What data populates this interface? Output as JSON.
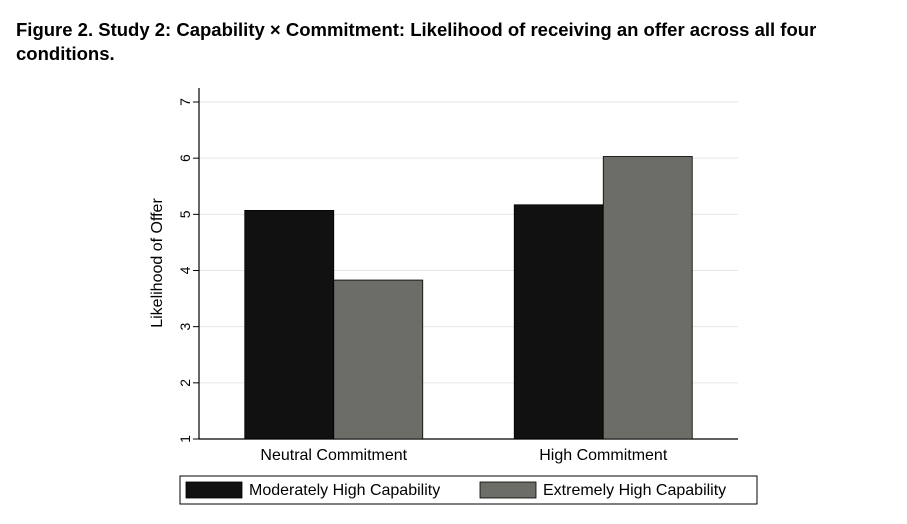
{
  "figure": {
    "title": "Figure 2.  Study 2: Capability × Commitment: Likelihood of receiving an offer across all four conditions."
  },
  "chart_data": {
    "type": "bar",
    "categories": [
      "Neutral Commitment",
      "High Commitment"
    ],
    "series": [
      {
        "name": "Moderately High Capability",
        "values": [
          5.07,
          5.17
        ],
        "color": "#111111"
      },
      {
        "name": "Extremely High Capability",
        "values": [
          3.83,
          6.03
        ],
        "color": "#6d6d68"
      }
    ],
    "ylabel": "Likelihood of Offer",
    "xlabel": "",
    "ylim": [
      1,
      7
    ],
    "yticks": [
      1,
      2,
      3,
      4,
      5,
      6,
      7
    ],
    "grid": true,
    "legend_position": "bottom"
  }
}
